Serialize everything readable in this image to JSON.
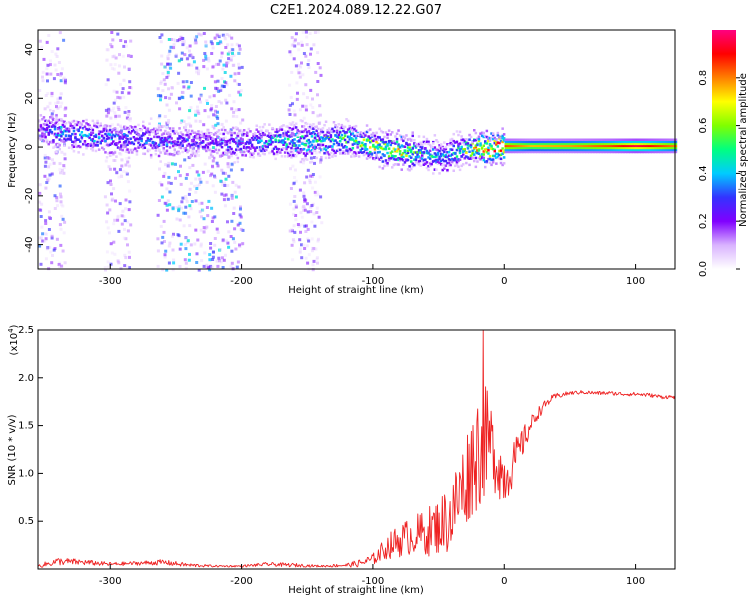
{
  "title": "C2E1.2024.089.12.22.G07",
  "colors": {
    "snr_line": "#ee2222",
    "axis": "#000000",
    "background": "#ffffff",
    "colormap": [
      "#ffffff",
      "#d9b3ff",
      "#8000ff",
      "#3333ff",
      "#00ccff",
      "#00ff80",
      "#80ff00",
      "#ffff00",
      "#ff8000",
      "#ff0000",
      "#ff0080"
    ]
  },
  "chart_data": [
    {
      "type": "heatmap",
      "title": "C2E1.2024.089.12.22.G07",
      "xlabel": "Height of straight line (km)",
      "ylabel": "Frequency (Hz)",
      "xlim": [
        -355,
        130
      ],
      "ylim": [
        -50,
        48
      ],
      "xticks": [
        -300,
        -200,
        -100,
        0,
        100
      ],
      "xtick_labels": [
        "-300",
        "-200",
        "-100",
        "0",
        "100"
      ],
      "yticks": [
        -40,
        -20,
        0,
        20,
        40
      ],
      "ytick_labels": [
        "-40",
        "-20",
        "0",
        "20",
        "40"
      ],
      "colorbar": {
        "label": "Normalized spectral amplitude",
        "range": [
          0,
          1
        ],
        "ticks": [
          0.0,
          0.2,
          0.4,
          0.6,
          0.8
        ],
        "tick_labels": [
          "0.0",
          "0.2",
          "0.4",
          "0.6",
          "0.8"
        ]
      },
      "ridge": {
        "x": [
          -355,
          -340,
          -320,
          -300,
          -280,
          -260,
          -240,
          -220,
          -200,
          -180,
          -160,
          -140,
          -120,
          -100,
          -80,
          -60,
          -45,
          -35,
          -25,
          -15,
          0,
          20,
          50,
          80,
          100,
          130
        ],
        "freq": [
          8,
          7,
          5,
          4,
          4,
          3,
          3,
          2,
          2,
          3,
          3,
          3,
          4,
          1,
          -1,
          -2,
          -4,
          -1,
          0,
          0,
          1,
          1,
          1,
          1,
          1,
          1
        ],
        "amplitude": [
          0.25,
          0.4,
          0.4,
          0.38,
          0.38,
          0.35,
          0.3,
          0.3,
          0.35,
          0.45,
          0.5,
          0.55,
          0.6,
          0.7,
          0.75,
          0.5,
          0.45,
          0.5,
          0.8,
          0.9,
          0.85,
          0.75,
          0.78,
          0.85,
          0.95,
          0.8
        ]
      },
      "noise_bands": [
        {
          "x": [
            -355,
            -335
          ],
          "amplitude": 0.35
        },
        {
          "x": [
            -305,
            -285
          ],
          "amplitude": 0.3
        },
        {
          "x": [
            -265,
            -200
          ],
          "amplitude": 0.45
        },
        {
          "x": [
            -165,
            -140
          ],
          "amplitude": 0.3
        }
      ]
    },
    {
      "type": "line",
      "xlabel": "Height of straight line (km)",
      "ylabel": "SNR (10 * v/v)",
      "yscale_label": "(x10^4)",
      "y_multiplier": 10000,
      "xlim": [
        -355,
        130
      ],
      "ylim": [
        0,
        2.5
      ],
      "xticks": [
        -300,
        -200,
        -100,
        0,
        100
      ],
      "xtick_labels": [
        "-300",
        "-200",
        "-100",
        "0",
        "100"
      ],
      "yticks": [
        0.5,
        1.0,
        1.5,
        2.0,
        2.5
      ],
      "ytick_labels": [
        "0.5",
        "1.0",
        "1.5",
        "2.0",
        "2.5"
      ],
      "series": [
        {
          "x": [
            -355,
            -340,
            -320,
            -300,
            -280,
            -260,
            -240,
            -220,
            -200,
            -180,
            -160,
            -140,
            -120,
            -110,
            -100,
            -90,
            -80,
            -70,
            -60,
            -50,
            -40,
            -35,
            -30,
            -25,
            -20,
            -15,
            -10,
            -5,
            0,
            5,
            10,
            15,
            20,
            25,
            30,
            35,
            40,
            50,
            60,
            70,
            80,
            90,
            100,
            110,
            120,
            130
          ],
          "y": [
            0.03,
            0.08,
            0.07,
            0.05,
            0.06,
            0.07,
            0.04,
            0.03,
            0.03,
            0.05,
            0.04,
            0.03,
            0.04,
            0.06,
            0.1,
            0.22,
            0.3,
            0.35,
            0.38,
            0.45,
            0.55,
            0.75,
            0.9,
            1.1,
            1.25,
            1.35,
            1.3,
            1.1,
            0.95,
            1.05,
            1.2,
            1.35,
            1.5,
            1.62,
            1.7,
            1.77,
            1.81,
            1.84,
            1.85,
            1.84,
            1.84,
            1.83,
            1.83,
            1.82,
            1.8,
            1.8
          ],
          "noise_amplitude": [
            0.02,
            0.04,
            0.03,
            0.02,
            0.02,
            0.03,
            0.02,
            0.01,
            0.01,
            0.02,
            0.02,
            0.01,
            0.02,
            0.04,
            0.06,
            0.12,
            0.18,
            0.2,
            0.25,
            0.3,
            0.4,
            0.45,
            0.5,
            0.55,
            0.65,
            0.6,
            0.45,
            0.35,
            0.3,
            0.25,
            0.2,
            0.15,
            0.1,
            0.07,
            0.05,
            0.04,
            0.03,
            0.02,
            0.02,
            0.02,
            0.02,
            0.02,
            0.02,
            0.02,
            0.02,
            0.02
          ],
          "peak": {
            "x": -16,
            "y": 2.5
          }
        }
      ]
    }
  ]
}
